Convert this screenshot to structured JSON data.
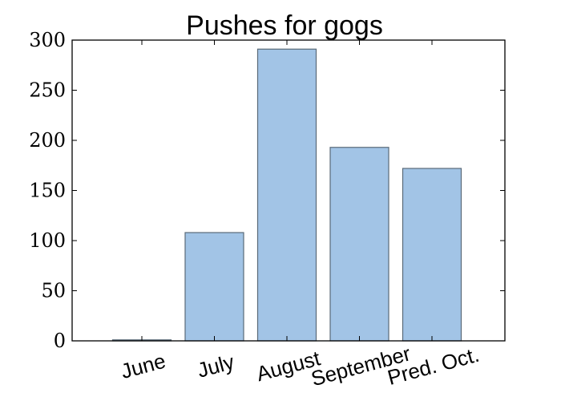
{
  "chart_data": {
    "type": "bar",
    "title": "Pushes for gogs",
    "xlabel": "",
    "ylabel": "",
    "categories": [
      "June",
      "July",
      "August",
      "September",
      "Pred. Oct."
    ],
    "values": [
      1,
      108,
      291,
      193,
      172
    ],
    "ylim": [
      0,
      300
    ],
    "yticks": [
      "0",
      "50",
      "100",
      "150",
      "200",
      "250",
      "300"
    ],
    "grid": false,
    "bar_color": "#a2c4e6",
    "edge_color": "#5a6a78"
  }
}
